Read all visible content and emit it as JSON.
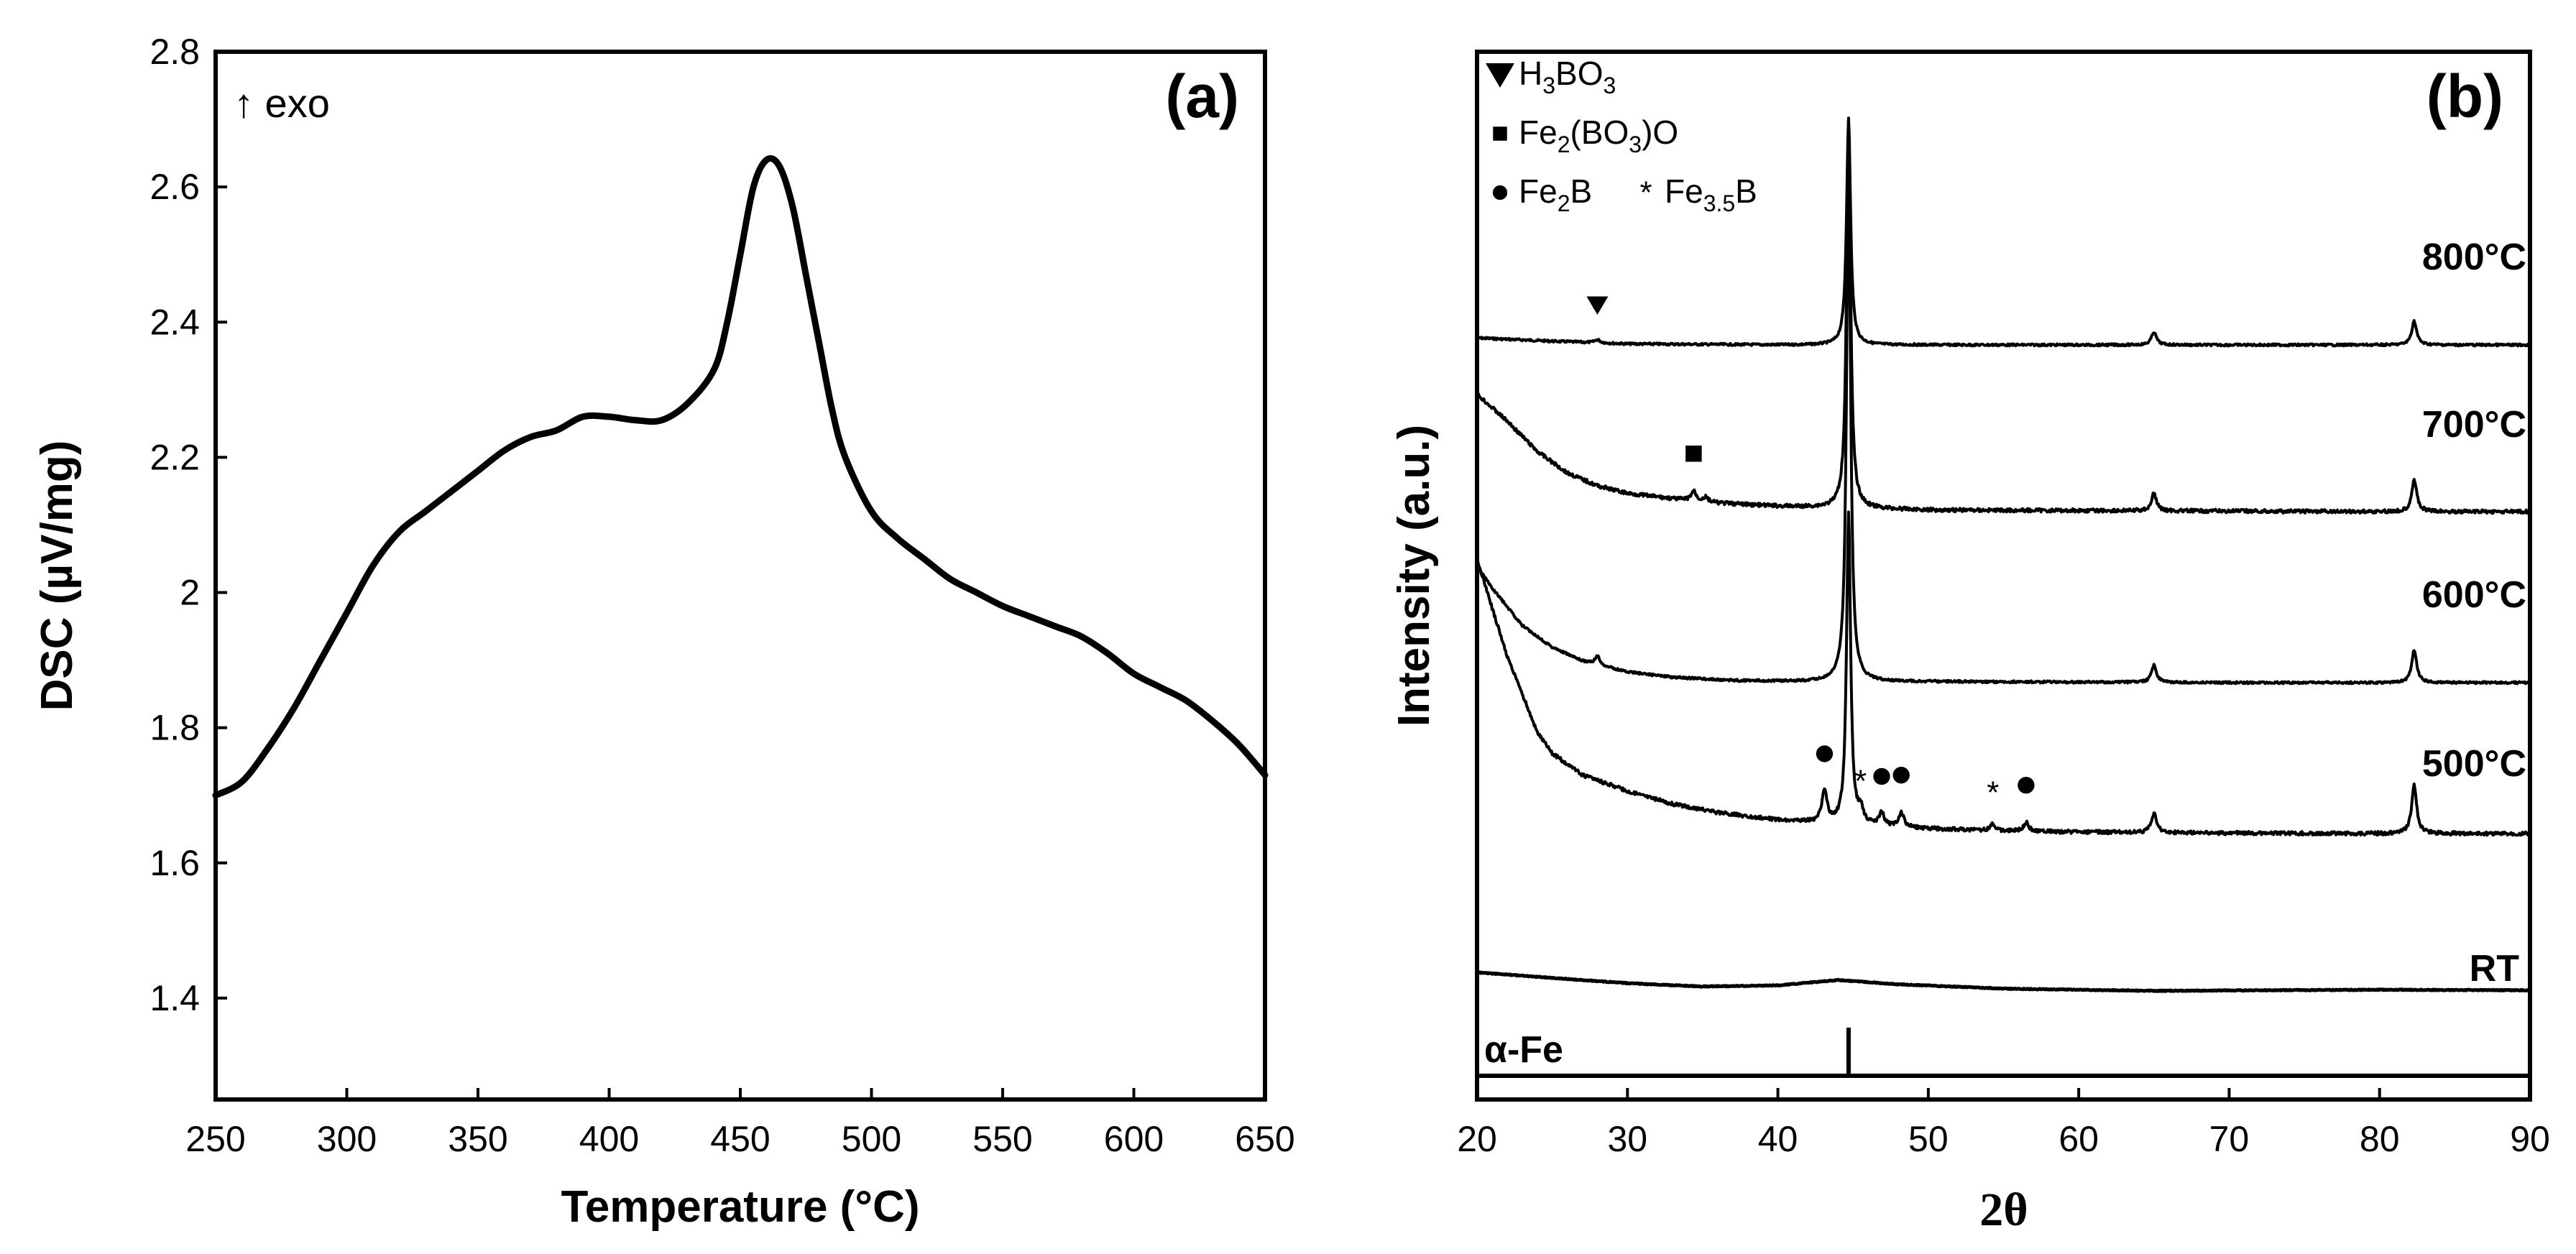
{
  "chart_data": [
    {
      "type": "line",
      "panel_label": "(a)",
      "xlabel": "Temperature (°C)",
      "ylabel": "DSC (µV/mg)",
      "annotation": "↑ exo",
      "xlim": [
        250,
        650
      ],
      "ylim": [
        1.25,
        2.8
      ],
      "xticks": [
        250,
        300,
        350,
        400,
        450,
        500,
        550,
        600,
        650
      ],
      "xtick_labels": [
        "250",
        "300",
        "350",
        "400",
        "450",
        "500",
        "550",
        "600",
        "650"
      ],
      "yticks": [
        1.4,
        1.6,
        1.8,
        2.0,
        2.2,
        2.4,
        2.6,
        2.8
      ],
      "ytick_labels": [
        "1.4",
        "1.6",
        "1.8",
        "2",
        "2.2",
        "2.4",
        "2.6",
        "2.8"
      ],
      "grid": false,
      "series": [
        {
          "x": [
            250,
            260,
            270,
            280,
            290,
            300,
            310,
            320,
            330,
            340,
            350,
            360,
            370,
            380,
            390,
            400,
            410,
            420,
            430,
            440,
            445,
            450,
            455,
            460,
            465,
            470,
            475,
            480,
            485,
            490,
            500,
            510,
            520,
            530,
            540,
            550,
            560,
            570,
            580,
            590,
            600,
            610,
            620,
            630,
            640,
            650
          ],
          "y": [
            1.7,
            1.72,
            1.77,
            1.83,
            1.9,
            1.97,
            2.04,
            2.09,
            2.12,
            2.15,
            2.18,
            2.21,
            2.23,
            2.24,
            2.26,
            2.26,
            2.255,
            2.255,
            2.28,
            2.33,
            2.4,
            2.5,
            2.6,
            2.64,
            2.63,
            2.57,
            2.47,
            2.37,
            2.27,
            2.2,
            2.12,
            2.08,
            2.05,
            2.02,
            2.0,
            1.98,
            1.965,
            1.95,
            1.935,
            1.91,
            1.88,
            1.86,
            1.84,
            1.81,
            1.775,
            1.73
          ]
        }
      ]
    },
    {
      "type": "line",
      "panel_label": "(b)",
      "xlabel": "2θ",
      "ylabel": "Intensity (a.u.)",
      "xlim": [
        20,
        90
      ],
      "xticks": [
        20,
        30,
        40,
        50,
        60,
        70,
        80,
        90
      ],
      "xtick_labels": [
        "20",
        "30",
        "40",
        "50",
        "60",
        "70",
        "80",
        "90"
      ],
      "grid": false,
      "legend": {
        "placement": "top-left",
        "entries": [
          {
            "marker": "triangle-down-icon",
            "parts": [
              "H",
              "3",
              "BO",
              "3",
              ""
            ]
          },
          {
            "marker": "square-icon",
            "parts": [
              "Fe",
              "2",
              "(BO",
              "3",
              ")O"
            ]
          },
          {
            "marker": "circle-icon",
            "parts": [
              "Fe",
              "2",
              "B",
              "",
              ""
            ]
          },
          {
            "marker": "star-icon",
            "parts": [
              "Fe",
              "3.5",
              "B",
              "",
              ""
            ]
          }
        ]
      },
      "series": [
        {
          "name": "800°C",
          "baseline": [
            [
              20,
              0.85
            ],
            [
              25,
              0.82
            ],
            [
              30,
              0.795
            ],
            [
              40,
              0.785
            ],
            [
              50,
              0.785
            ],
            [
              60,
              0.785
            ],
            [
              70,
              0.785
            ],
            [
              90,
              0.785
            ]
          ],
          "peaks": [
            [
              28,
              0.03
            ],
            [
              44.7,
              2.1
            ],
            [
              65,
              0.12
            ],
            [
              82.3,
              0.22
            ]
          ]
        },
        {
          "name": "700°C",
          "baseline": [
            [
              20,
              1.75
            ],
            [
              22,
              1.5
            ],
            [
              24,
              1.22
            ],
            [
              26,
              1.02
            ],
            [
              28,
              0.9
            ],
            [
              30,
              0.83
            ],
            [
              33,
              0.78
            ],
            [
              36,
              0.74
            ],
            [
              40,
              0.71
            ],
            [
              45,
              0.69
            ],
            [
              50,
              0.675
            ],
            [
              60,
              0.67
            ],
            [
              70,
              0.665
            ],
            [
              80,
              0.66
            ],
            [
              90,
              0.66
            ]
          ],
          "peaks": [
            [
              34.4,
              0.09
            ],
            [
              35.2,
              0.04
            ],
            [
              44.7,
              3.6
            ],
            [
              65,
              0.16
            ],
            [
              82.3,
              0.3
            ]
          ]
        },
        {
          "name": "600°C",
          "baseline": [
            [
              20,
              1.7
            ],
            [
              21,
              1.5
            ],
            [
              23,
              1.15
            ],
            [
              25,
              0.95
            ],
            [
              27,
              0.82
            ],
            [
              30,
              0.72
            ],
            [
              33,
              0.67
            ],
            [
              37,
              0.64
            ],
            [
              42,
              0.63
            ],
            [
              50,
              0.63
            ],
            [
              60,
              0.625
            ],
            [
              70,
              0.62
            ],
            [
              80,
              0.62
            ],
            [
              90,
              0.62
            ]
          ],
          "peaks": [
            [
              28,
              0.08
            ],
            [
              44.7,
              4.8
            ],
            [
              65,
              0.16
            ],
            [
              82.3,
              0.3
            ]
          ]
        },
        {
          "name": "500°C",
          "baseline": [
            [
              20,
              3.2
            ],
            [
              21,
              2.75
            ],
            [
              22,
              2.3
            ],
            [
              23,
              1.95
            ],
            [
              24,
              1.6
            ],
            [
              25,
              1.4
            ],
            [
              27,
              1.2
            ],
            [
              30,
              1.05
            ],
            [
              33,
              0.93
            ],
            [
              36,
              0.85
            ],
            [
              40,
              0.78
            ],
            [
              45,
              0.73
            ],
            [
              50,
              0.7
            ],
            [
              55,
              0.68
            ],
            [
              60,
              0.67
            ],
            [
              70,
              0.66
            ],
            [
              80,
              0.655
            ],
            [
              90,
              0.655
            ]
          ],
          "peaks": [
            [
              43.1,
              0.3
            ],
            [
              44.7,
              2.9
            ],
            [
              45.5,
              0.12
            ],
            [
              46.9,
              0.12
            ],
            [
              48.2,
              0.14
            ],
            [
              54.3,
              0.06
            ],
            [
              56.5,
              0.08
            ],
            [
              65,
              0.18
            ],
            [
              82.3,
              0.45
            ]
          ]
        },
        {
          "name": "RT",
          "baseline": [
            [
              20,
              0.2
            ],
            [
              25,
              0.15
            ],
            [
              30,
              0.1
            ],
            [
              35,
              0.07
            ],
            [
              40,
              0.08
            ],
            [
              44,
              0.13
            ],
            [
              48,
              0.09
            ],
            [
              55,
              0.05
            ],
            [
              65,
              0.03
            ],
            [
              80,
              0.04
            ],
            [
              90,
              0.035
            ]
          ],
          "peaks": []
        }
      ],
      "markers": [
        {
          "symbol": "triangle-down-icon",
          "x": 28
        },
        {
          "symbol": "square-icon",
          "x": 34.4
        },
        {
          "symbol": "circle-icon",
          "x": 43.1
        },
        {
          "symbol": "star-icon",
          "x": 45.5
        },
        {
          "symbol": "circle-icon",
          "x": 46.9
        },
        {
          "symbol": "circle-icon",
          "x": 48.2
        },
        {
          "symbol": "star-icon",
          "x": 54.3
        },
        {
          "symbol": "circle-icon",
          "x": 56.5
        }
      ],
      "reference": {
        "label": "α-Fe",
        "lines": [
          44.7
        ]
      }
    }
  ]
}
